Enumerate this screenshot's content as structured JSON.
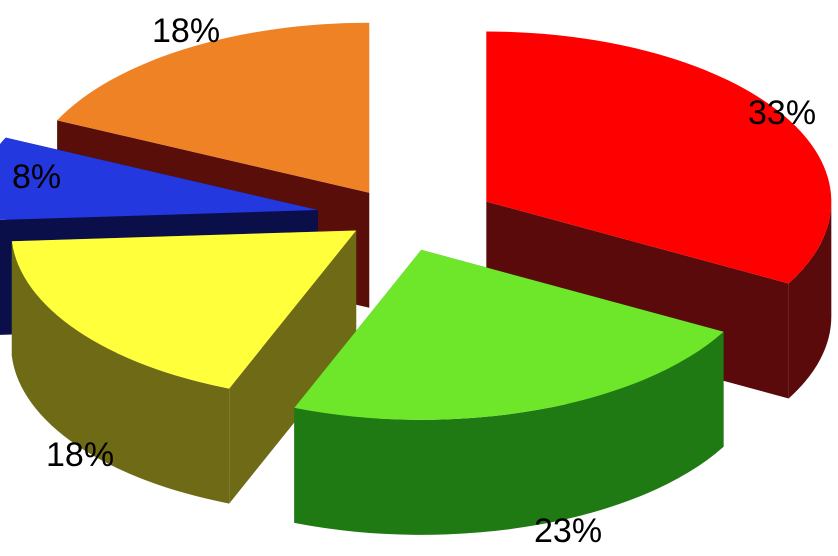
{
  "chart_data": {
    "type": "pie",
    "style": "3d-exploded",
    "title": "",
    "slices": [
      {
        "value": 33,
        "label": "33%",
        "color": "#ff0000",
        "side_color": "#5a0a0a"
      },
      {
        "value": 23,
        "label": "23%",
        "color": "#6ee62a",
        "side_color": "#207a14"
      },
      {
        "value": 18,
        "label": "18%",
        "color": "#ffff3c",
        "side_color": "#6e6a16"
      },
      {
        "value": 8,
        "label": "8%",
        "color": "#2438e0",
        "side_color": "#0a0f4a"
      },
      {
        "value": 18,
        "label": "18%",
        "color": "#f08226",
        "side_color": "#5a0e0a"
      }
    ]
  }
}
